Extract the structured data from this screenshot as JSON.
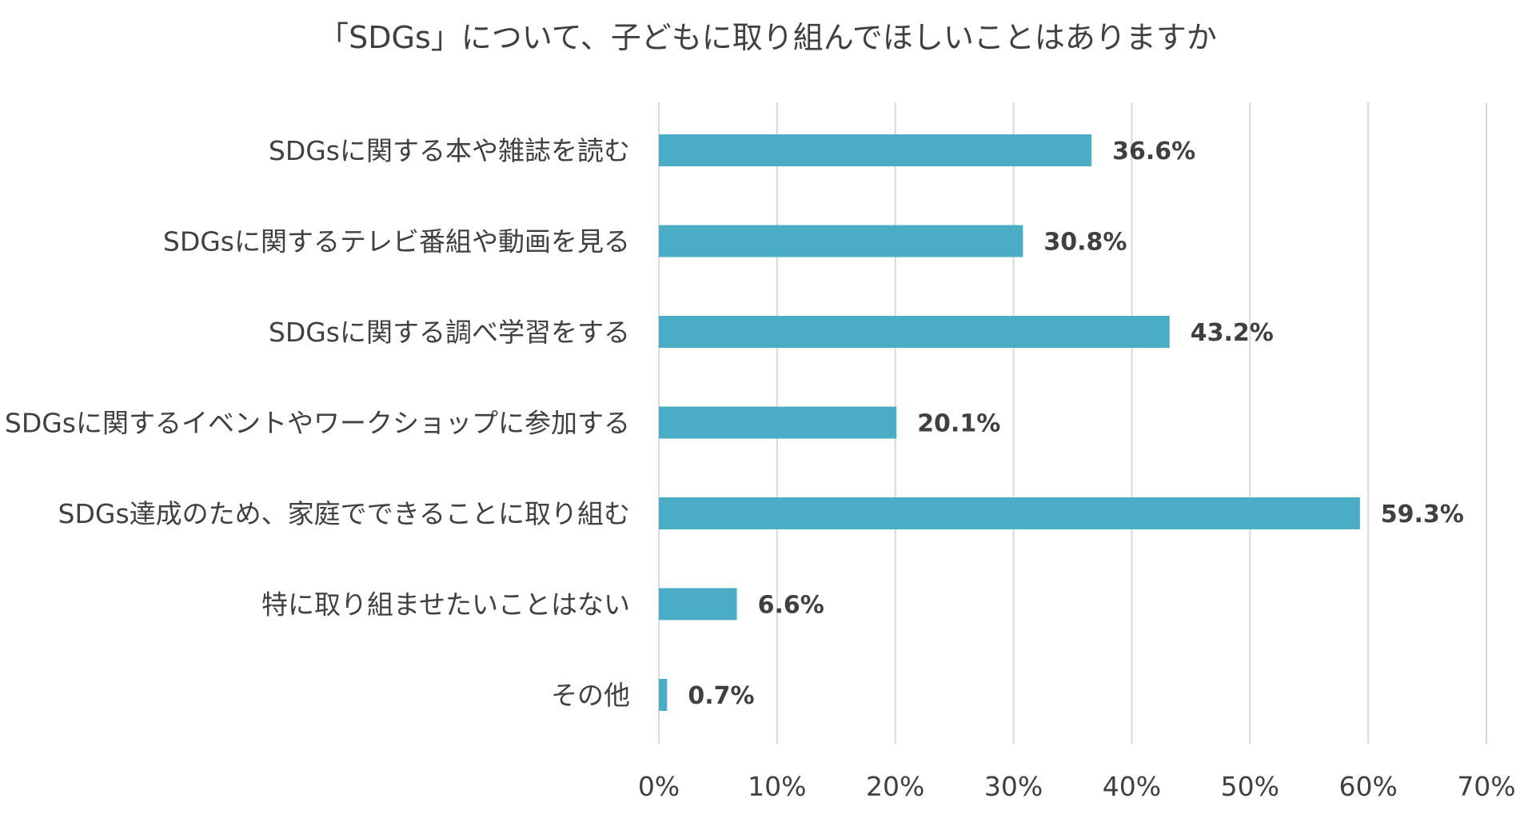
{
  "chart_data": {
    "type": "bar",
    "orientation": "horizontal",
    "title": "「SDGs」について、子どもに取り組んでほしいことはありますか",
    "categories": [
      "SDGsに関する本や雑誌を読む",
      "SDGsに関するテレビ番組や動画を見る",
      "SDGsに関する調べ学習をする",
      "SDGsに関するイベントやワークショップに参加する",
      "SDGs達成のため、家庭でできることに取り組む",
      "特に取り組ませたいことはない",
      "その他"
    ],
    "values": [
      36.6,
      30.8,
      43.2,
      20.1,
      59.3,
      6.6,
      0.7
    ],
    "value_labels": [
      "36.6%",
      "30.8%",
      "43.2%",
      "20.1%",
      "59.3%",
      "6.6%",
      "0.7%"
    ],
    "x_ticks": [
      "0%",
      "10%",
      "20%",
      "30%",
      "40%",
      "50%",
      "60%",
      "70%"
    ],
    "xlim": [
      0,
      70
    ],
    "grid": true,
    "legend": "none",
    "bar_color": "#4bacc6",
    "text_color": "#404040",
    "grid_color": "#d9d9d9"
  }
}
